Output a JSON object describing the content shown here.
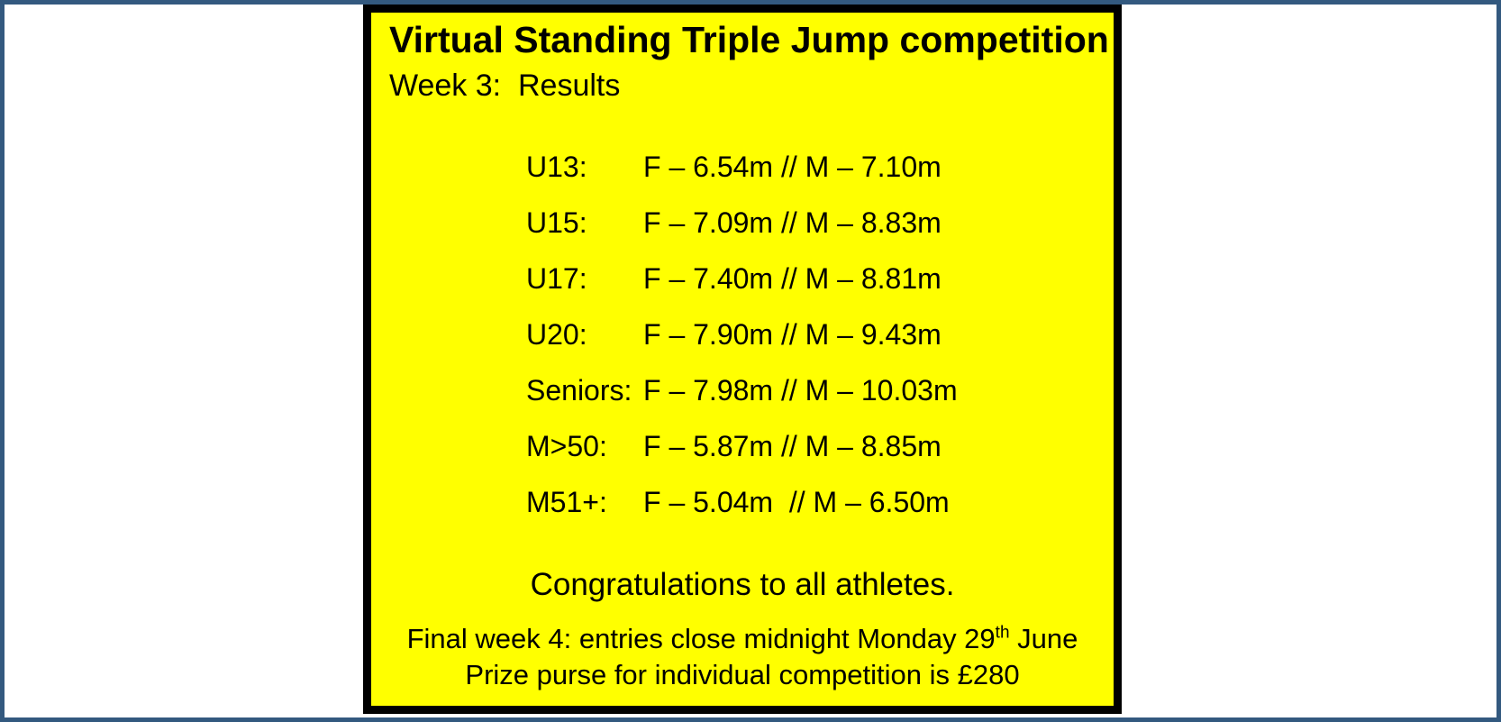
{
  "poster": {
    "title": "Virtual Standing Triple Jump competition",
    "subtitle": "Week 3:  Results",
    "results": [
      {
        "category": "U13:",
        "result": "F – 6.54m // M – 7.10m"
      },
      {
        "category": "U15:",
        "result": "F – 7.09m // M – 8.83m"
      },
      {
        "category": "U17:",
        "result": "F – 7.40m // M – 8.81m"
      },
      {
        "category": "U20:",
        "result": "F – 7.90m // M – 9.43m"
      },
      {
        "category": "Seniors:",
        "result": "F – 7.98m // M – 10.03m"
      },
      {
        "category": "M>50:",
        "result": "F – 5.87m // M – 8.85m"
      },
      {
        "category": "M51+:",
        "result": "F – 5.04m  // M – 6.50m"
      }
    ],
    "congratulations": "Congratulations to all athletes.",
    "final_week_note": {
      "before_sup": "Final week 4: entries close midnight Monday 29",
      "sup": "th",
      "after_sup": " June"
    },
    "prize_note": "Prize purse for individual competition is £280",
    "colors": {
      "page_background": "#FFFFFF",
      "frame_border": "#33597F",
      "panel_background": "#FFFF00",
      "panel_border": "#000000",
      "text": "#000000"
    }
  }
}
